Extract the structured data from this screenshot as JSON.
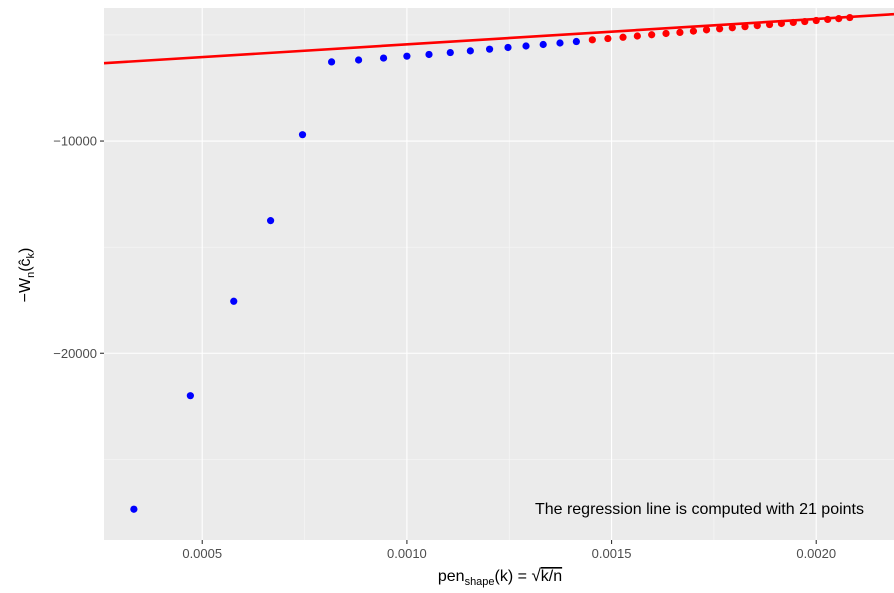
{
  "chart_data": {
    "type": "scatter",
    "xlabel": "pen_shape(k) = √k/n",
    "ylabel": "−W_n(ĉ_k)",
    "xlim": [
      0.00026,
      0.00219
    ],
    "ylim": [
      -28800,
      -3730
    ],
    "x_ticks": [
      0.0005,
      0.001,
      0.0015,
      0.002
    ],
    "x_tick_labels": [
      "0.0005",
      "0.0010",
      "0.0015",
      "0.0020"
    ],
    "y_ticks": [
      -10000,
      -20000
    ],
    "y_tick_labels": [
      "−10000",
      "−20000"
    ],
    "grid": true,
    "background": "#ebebeb",
    "annotation": "The regression line is computed with 21 points",
    "colors": {
      "unused_points": "#0000ff",
      "regression_points": "#ff0000",
      "regression_line": "#ff0000"
    },
    "series": [
      {
        "role": "unused_points",
        "color": "#0000ff",
        "points": [
          [
            0.000333,
            -27350
          ],
          [
            0.000471,
            -22000
          ],
          [
            0.000577,
            -17550
          ],
          [
            0.000667,
            -13750
          ],
          [
            0.000745,
            -9700
          ],
          [
            0.000816,
            -6270
          ],
          [
            0.000882,
            -6180
          ],
          [
            0.000943,
            -6090
          ],
          [
            0.001,
            -6000
          ],
          [
            0.001054,
            -5920
          ],
          [
            0.001106,
            -5830
          ],
          [
            0.001155,
            -5750
          ],
          [
            0.001202,
            -5670
          ],
          [
            0.001247,
            -5590
          ],
          [
            0.001291,
            -5520
          ],
          [
            0.001333,
            -5450
          ],
          [
            0.001374,
            -5380
          ],
          [
            0.001414,
            -5310
          ]
        ]
      },
      {
        "role": "regression_points",
        "color": "#ff0000",
        "points": [
          [
            0.001453,
            -5230
          ],
          [
            0.001491,
            -5170
          ],
          [
            0.001528,
            -5110
          ],
          [
            0.001563,
            -5050
          ],
          [
            0.001598,
            -4990
          ],
          [
            0.001633,
            -4930
          ],
          [
            0.001667,
            -4880
          ],
          [
            0.0017,
            -4820
          ],
          [
            0.001732,
            -4760
          ],
          [
            0.001764,
            -4710
          ],
          [
            0.001795,
            -4660
          ],
          [
            0.001826,
            -4610
          ],
          [
            0.001856,
            -4560
          ],
          [
            0.001886,
            -4510
          ],
          [
            0.001915,
            -4460
          ],
          [
            0.001944,
            -4410
          ],
          [
            0.001972,
            -4370
          ],
          [
            0.002,
            -4320
          ],
          [
            0.002028,
            -4270
          ],
          [
            0.002055,
            -4230
          ],
          [
            0.002082,
            -4180
          ]
        ]
      }
    ],
    "regression_line": {
      "x": [
        0.00026,
        0.00219
      ],
      "y": [
        -6330,
        -4020
      ]
    }
  }
}
